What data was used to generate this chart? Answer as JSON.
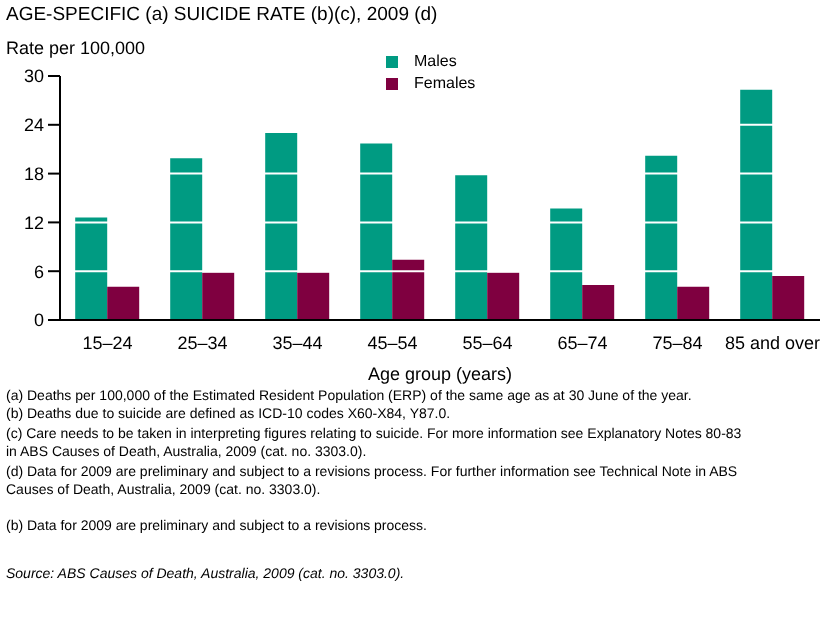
{
  "chart_data": {
    "type": "bar",
    "title": "AGE-SPECIFIC (a) SUICIDE RATE (b)(c), 2009 (d)",
    "ylabel": "Rate per 100,000",
    "xlabel": "Age group (years)",
    "categories": [
      "15–24",
      "25–34",
      "35–44",
      "45–54",
      "55–64",
      "65–74",
      "75–84",
      "85 and over"
    ],
    "series": [
      {
        "name": "Males",
        "color": "#009b82",
        "values": [
          12.6,
          19.9,
          23.0,
          21.7,
          17.8,
          13.7,
          20.2,
          28.3
        ]
      },
      {
        "name": "Females",
        "color": "#7f0040",
        "values": [
          4.1,
          5.8,
          5.8,
          7.4,
          5.8,
          4.3,
          4.1,
          5.4
        ]
      }
    ],
    "ylim": [
      0,
      30
    ],
    "yticks": [
      0,
      6,
      12,
      18,
      24,
      30
    ],
    "grid": "y",
    "legend": "top",
    "annotations": [
      "(a) Deaths per 100,000 of the Estimated Resident Population (ERP) of the same age as at 30 June of the year.",
      "(b) Deaths due to suicide are defined as ICD-10 codes X60-X84, Y87.0.",
      "(c) Care needs to be taken in interpreting figures relating to suicide. For more information see Explanatory Notes 80-83 in ABS Causes of Death, Australia, 2009 (cat. no. 3303.0).",
      "(d) Data for 2009 are preliminary and subject to a revisions process. For further information see Technical Note in ABS Causes of Death, Australia, 2009 (cat. no. 3303.0).",
      "(b) Data for 2009 are preliminary and subject to a revisions process.",
      "Source: ABS Causes of Death, Australia, 2009 (cat. no. 3303.0)."
    ]
  }
}
